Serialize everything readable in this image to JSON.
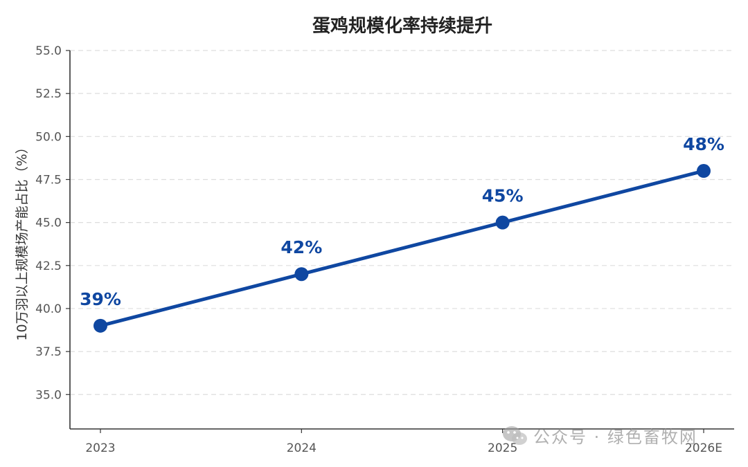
{
  "colors": {
    "line": "#0f47a1",
    "text_title": "#222222",
    "axis": "#333333",
    "grid": "#dddddd"
  },
  "watermark": {
    "text": "公众号 · 绿色畜牧网",
    "icon": "wechat-icon"
  },
  "chart_data": {
    "type": "line",
    "title": "蛋鸡规模化率持续提升",
    "xlabel": "",
    "ylabel": "10万羽以上规模场产能占比（%）",
    "categories": [
      "2023",
      "2024",
      "2025",
      "2026E"
    ],
    "series": [
      {
        "values": [
          39,
          42,
          45,
          48
        ],
        "labels": [
          "39%",
          "42%",
          "45%",
          "48%"
        ]
      }
    ],
    "ylim": [
      33.0,
      55.0
    ],
    "yticks": [
      35.0,
      37.5,
      40.0,
      42.5,
      45.0,
      47.5,
      50.0,
      52.5,
      55.0
    ],
    "ytick_labels": [
      "35.0",
      "37.5",
      "40.0",
      "42.5",
      "45.0",
      "47.5",
      "50.0",
      "52.5",
      "55.0"
    ],
    "grid": true,
    "legend": "none"
  }
}
